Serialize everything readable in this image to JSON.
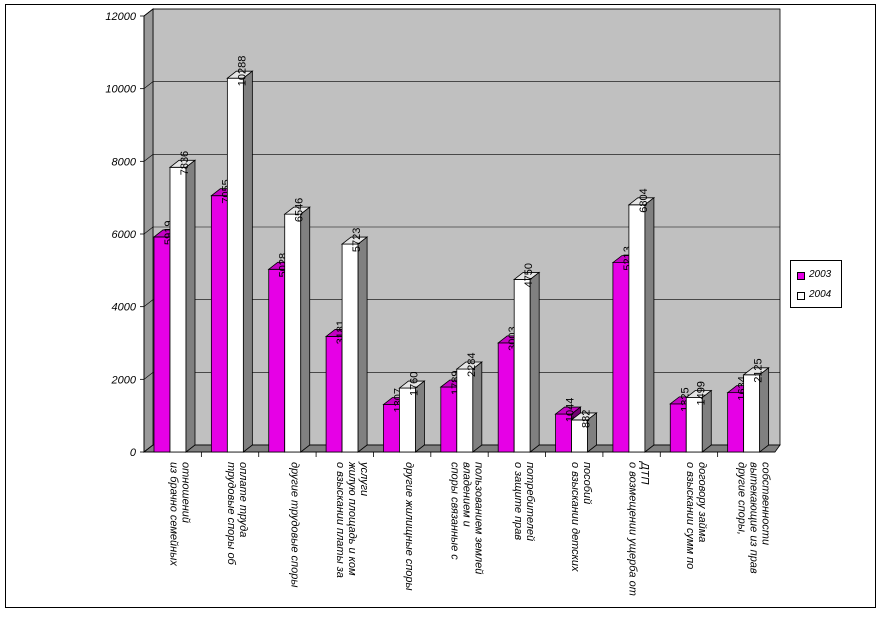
{
  "chart_data": {
    "type": "bar",
    "categories": [
      "из брачно семейных отношений",
      "трудовые споры об оплате труда",
      "другие трудовые споры",
      "о взыскании платы за жилую площадь и ком услуги",
      "другие жилищные споры",
      "споры связанные с владением и пользованием землей",
      "о защите прав потребителей",
      "о взыскании детских пособий",
      "о возмещении ущерба от ДТП",
      "о взыскании сумм по договору займа",
      "другие споры, вытекающие из прав собственности"
    ],
    "series": [
      {
        "name": "2003",
        "values": [
          5919,
          7055,
          5028,
          3181,
          1307,
          1789,
          3003,
          1044,
          5213,
          1325,
          1634
        ],
        "color": "#e600e6"
      },
      {
        "name": "2004",
        "values": [
          7836,
          10288,
          6546,
          5723,
          1760,
          2284,
          4750,
          882,
          6804,
          1499,
          2125
        ],
        "color": "#ffffff"
      }
    ],
    "data_labels": [
      [
        "5919",
        "7055",
        "5028",
        "3181",
        "1307",
        "1789",
        "3003",
        "1044",
        "5213",
        "1325",
        "1634"
      ],
      [
        "7836",
        "10288",
        "6546",
        "5723",
        "1760",
        "2284",
        "4750",
        "882",
        "6804",
        "1499",
        "2125"
      ]
    ],
    "yticks": [
      "0",
      "2000",
      "4000",
      "6000",
      "8000",
      "10000",
      "12000"
    ],
    "ylim": [
      0,
      12000
    ],
    "grid": true,
    "legend": "right",
    "wall_color": "#c0c0c0"
  }
}
